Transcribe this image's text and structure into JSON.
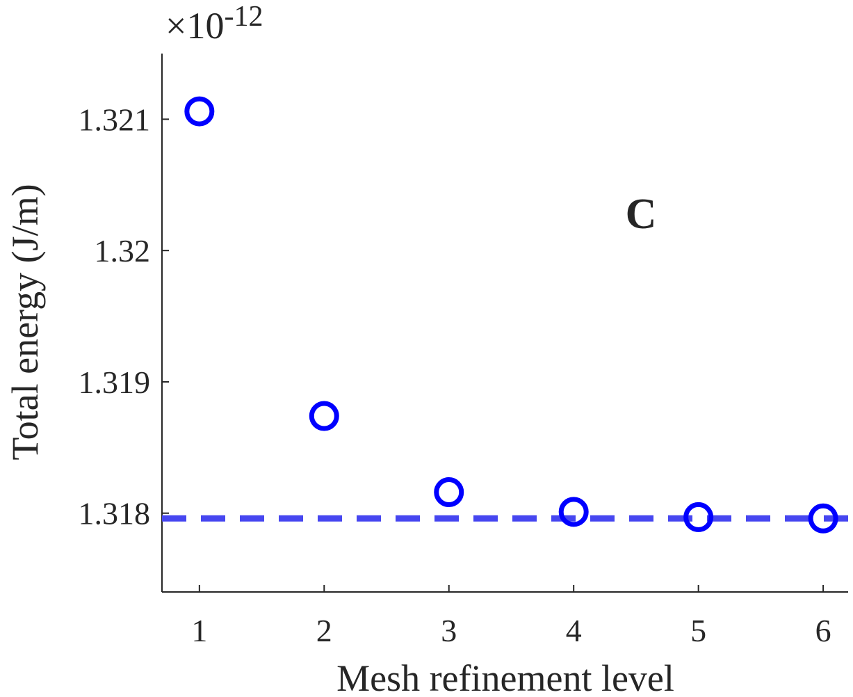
{
  "chart_data": {
    "type": "scatter",
    "xlabel": "Mesh refinement level",
    "ylabel": "Total energy (J/m)",
    "y_exponent_label": "×10",
    "y_exponent_power": "-12",
    "panel_label": "C",
    "x_ticks": [
      "1",
      "2",
      "3",
      "4",
      "5",
      "6"
    ],
    "y_ticks": [
      "1.318",
      "1.319",
      "1.32",
      "1.321"
    ],
    "xlim": [
      0.7,
      6.2
    ],
    "ylim": [
      1.3174,
      1.3215
    ],
    "grid": false,
    "series": [
      {
        "marker": "open-circle",
        "color": "#0000ff",
        "x": [
          1,
          2,
          3,
          4,
          5,
          6
        ],
        "y": [
          1.32106,
          1.31874,
          1.31816,
          1.31801,
          1.31797,
          1.31796
        ]
      }
    ],
    "reference_line": {
      "style": "dashed",
      "color": "#4646f0",
      "y": 1.31796
    },
    "axis_color": "#262626"
  }
}
